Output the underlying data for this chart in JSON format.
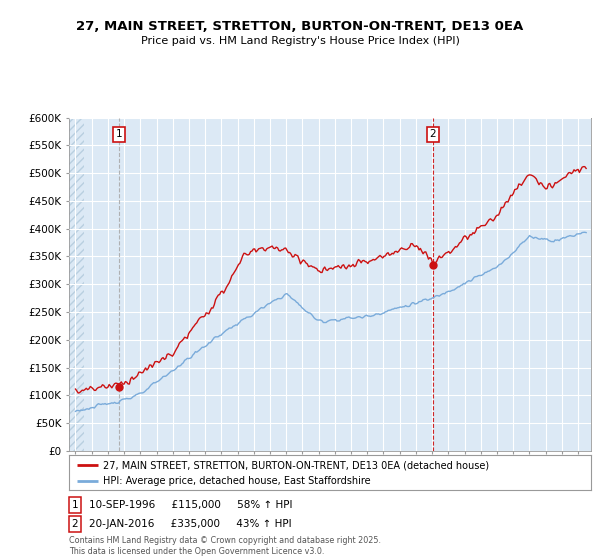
{
  "title_line1": "27, MAIN STREET, STRETTON, BURTON-ON-TRENT, DE13 0EA",
  "title_line2": "Price paid vs. HM Land Registry's House Price Index (HPI)",
  "ylim": [
    0,
    600000
  ],
  "yticks": [
    0,
    50000,
    100000,
    150000,
    200000,
    250000,
    300000,
    350000,
    400000,
    450000,
    500000,
    550000,
    600000
  ],
  "ytick_labels": [
    "£0",
    "£50K",
    "£100K",
    "£150K",
    "£200K",
    "£250K",
    "£300K",
    "£350K",
    "£400K",
    "£450K",
    "£500K",
    "£550K",
    "£600K"
  ],
  "hpi_color": "#7aabda",
  "price_color": "#cc1111",
  "marker1_x": 1996.7,
  "marker2_x": 2016.05,
  "marker1_y": 115000,
  "marker2_y": 335000,
  "marker1_line_color": "#aaaaaa",
  "marker2_line_color": "#cc1111",
  "sale1_info": "10-SEP-1996     £115,000     58% ↑ HPI",
  "sale2_info": "20-JAN-2016     £335,000     43% ↑ HPI",
  "legend_line1": "27, MAIN STREET, STRETTON, BURTON-ON-TRENT, DE13 0EA (detached house)",
  "legend_line2": "HPI: Average price, detached house, East Staffordshire",
  "footnote": "Contains HM Land Registry data © Crown copyright and database right 2025.\nThis data is licensed under the Open Government Licence v3.0.",
  "bg_color": "#ffffff",
  "plot_bg_color": "#dce9f5",
  "grid_color": "#ffffff",
  "xlim_left": 1993.6,
  "xlim_right": 2025.8
}
